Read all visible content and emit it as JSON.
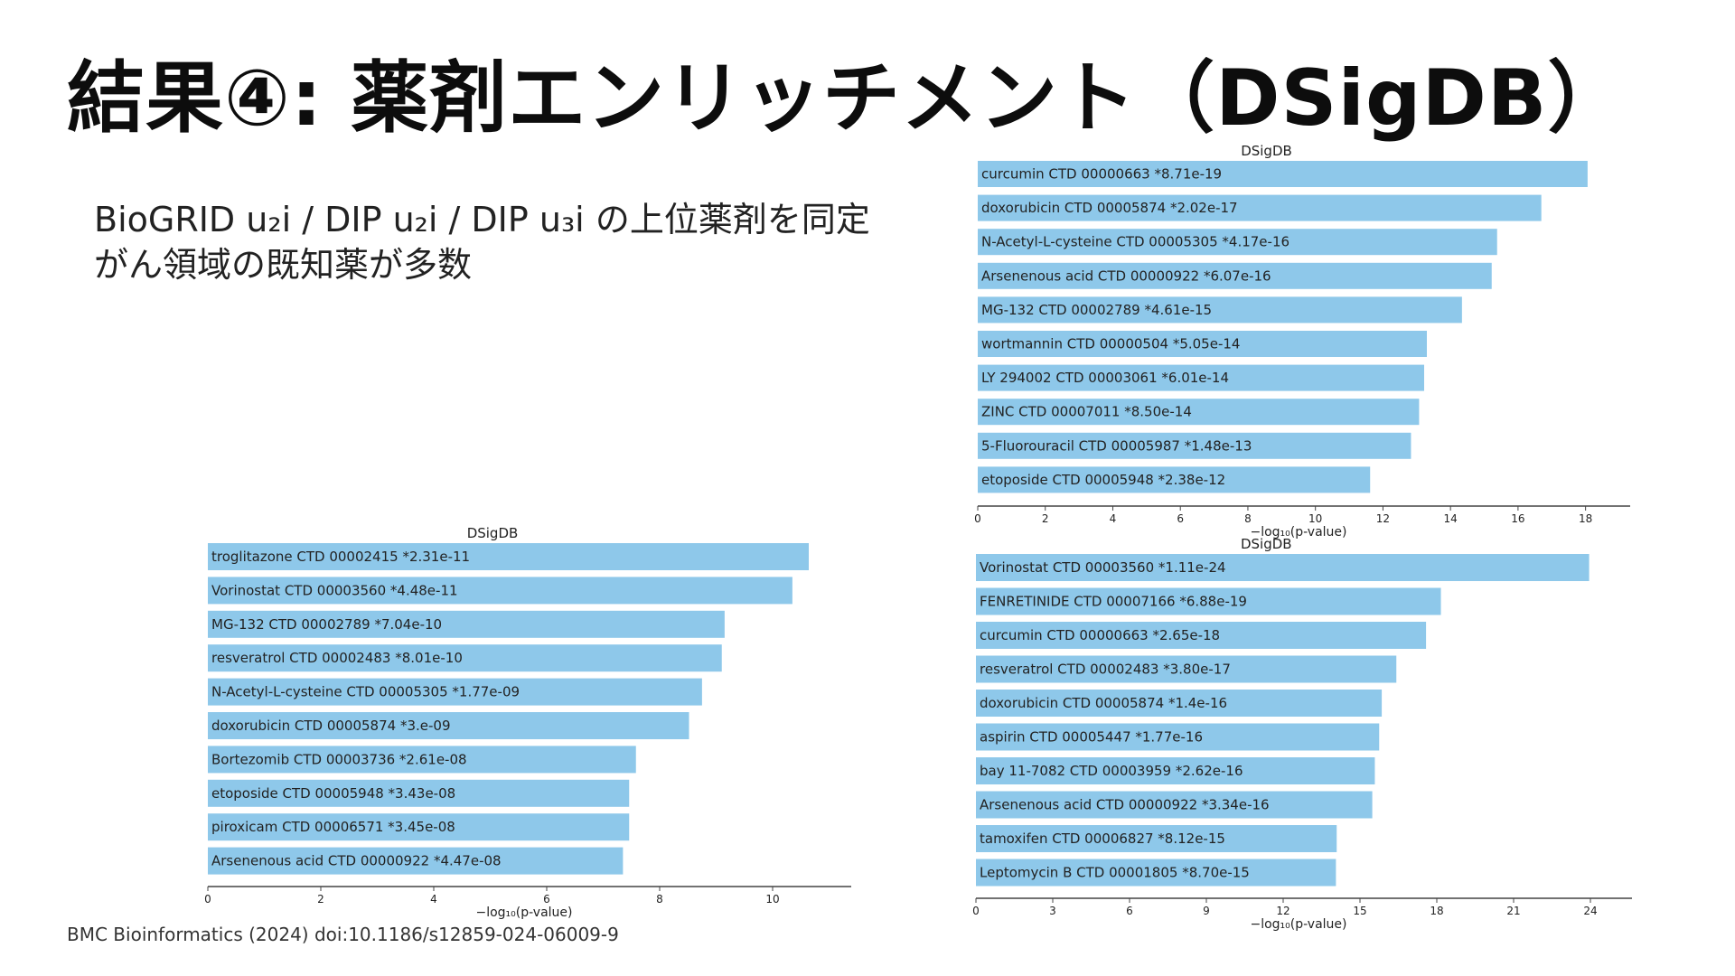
{
  "slide": {
    "title": "結果④: 薬剤エンリッチメント（DSigDB）",
    "bullets": [
      "BioGRID u₂i / DIP u₂i / DIP u₃i の上位薬剤を同定",
      "がん領域の既知薬が多数"
    ],
    "citation": "BMC Bioinformatics (2024) doi:10.1186/s12859-024-06009-9"
  },
  "colors": {
    "bar": "#8ec8ea",
    "axis": "#444444"
  },
  "chart_data": [
    {
      "id": "chart-top-right",
      "type": "bar",
      "orientation": "horizontal",
      "title": "DSigDB",
      "xlabel": "−log₁₀(p-value)",
      "xlim": [
        0,
        19
      ],
      "xticks": [
        0,
        2,
        4,
        6,
        8,
        10,
        12,
        14,
        16,
        18
      ],
      "grid": false,
      "categories": [
        "curcumin CTD 00000663  *8.71e-19",
        "doxorubicin CTD 00005874  *2.02e-17",
        "N-Acetyl-L-cysteine CTD 00005305  *4.17e-16",
        "Arsenenous acid CTD 00000922  *6.07e-16",
        "MG-132 CTD 00002789  *4.61e-15",
        "wortmannin CTD 00000504  *5.05e-14",
        "LY 294002 CTD 00003061  *6.01e-14",
        "ZINC CTD 00007011  *8.50e-14",
        "5-Fluorouracil CTD 00005987  *1.48e-13",
        "etoposide CTD 00005948  *2.38e-12"
      ],
      "values": [
        18.06,
        16.69,
        15.38,
        15.22,
        14.34,
        13.3,
        13.22,
        13.07,
        12.83,
        11.62
      ]
    },
    {
      "id": "chart-bottom-left",
      "type": "bar",
      "orientation": "horizontal",
      "title": "DSigDB",
      "xlabel": "−log₁₀(p-value)",
      "xlim": [
        0,
        11.2
      ],
      "xticks": [
        0,
        2,
        4,
        6,
        8,
        10
      ],
      "grid": false,
      "categories": [
        "troglitazone CTD 00002415  *2.31e-11",
        "Vorinostat CTD 00003560  *4.48e-11",
        "MG-132 CTD 00002789  *7.04e-10",
        "resveratrol CTD 00002483  *8.01e-10",
        "N-Acetyl-L-cysteine CTD 00005305  *1.77e-09",
        "doxorubicin CTD 00005874  *3.e-09",
        "Bortezomib CTD 00003736  *2.61e-08",
        "etoposide CTD 00005948  *3.43e-08",
        "piroxicam CTD 00006571  *3.45e-08",
        "Arsenenous acid CTD 00000922  *4.47e-08"
      ],
      "values": [
        10.64,
        10.35,
        9.15,
        9.1,
        8.75,
        8.52,
        7.58,
        7.46,
        7.46,
        7.35
      ]
    },
    {
      "id": "chart-bottom-right",
      "type": "bar",
      "orientation": "horizontal",
      "title": "DSigDB",
      "xlabel": "−log₁₀(p-value)",
      "xlim": [
        0,
        25.2
      ],
      "xticks": [
        0,
        3,
        6,
        9,
        12,
        15,
        18,
        21,
        24
      ],
      "grid": false,
      "categories": [
        "Vorinostat CTD 00003560  *1.11e-24",
        "FENRETINIDE CTD 00007166  *6.88e-19",
        "curcumin CTD 00000663  *2.65e-18",
        "resveratrol CTD 00002483  *3.80e-17",
        "doxorubicin CTD 00005874  *1.4e-16",
        "aspirin CTD 00005447  *1.77e-16",
        "bay 11-7082 CTD 00003959  *2.62e-16",
        "Arsenenous acid CTD 00000922  *3.34e-16",
        "tamoxifen CTD 00006827  *8.12e-15",
        "Leptomycin B CTD 00001805  *8.70e-15"
      ],
      "values": [
        23.95,
        18.16,
        17.58,
        16.42,
        15.85,
        15.75,
        15.58,
        15.48,
        14.09,
        14.06
      ]
    }
  ]
}
